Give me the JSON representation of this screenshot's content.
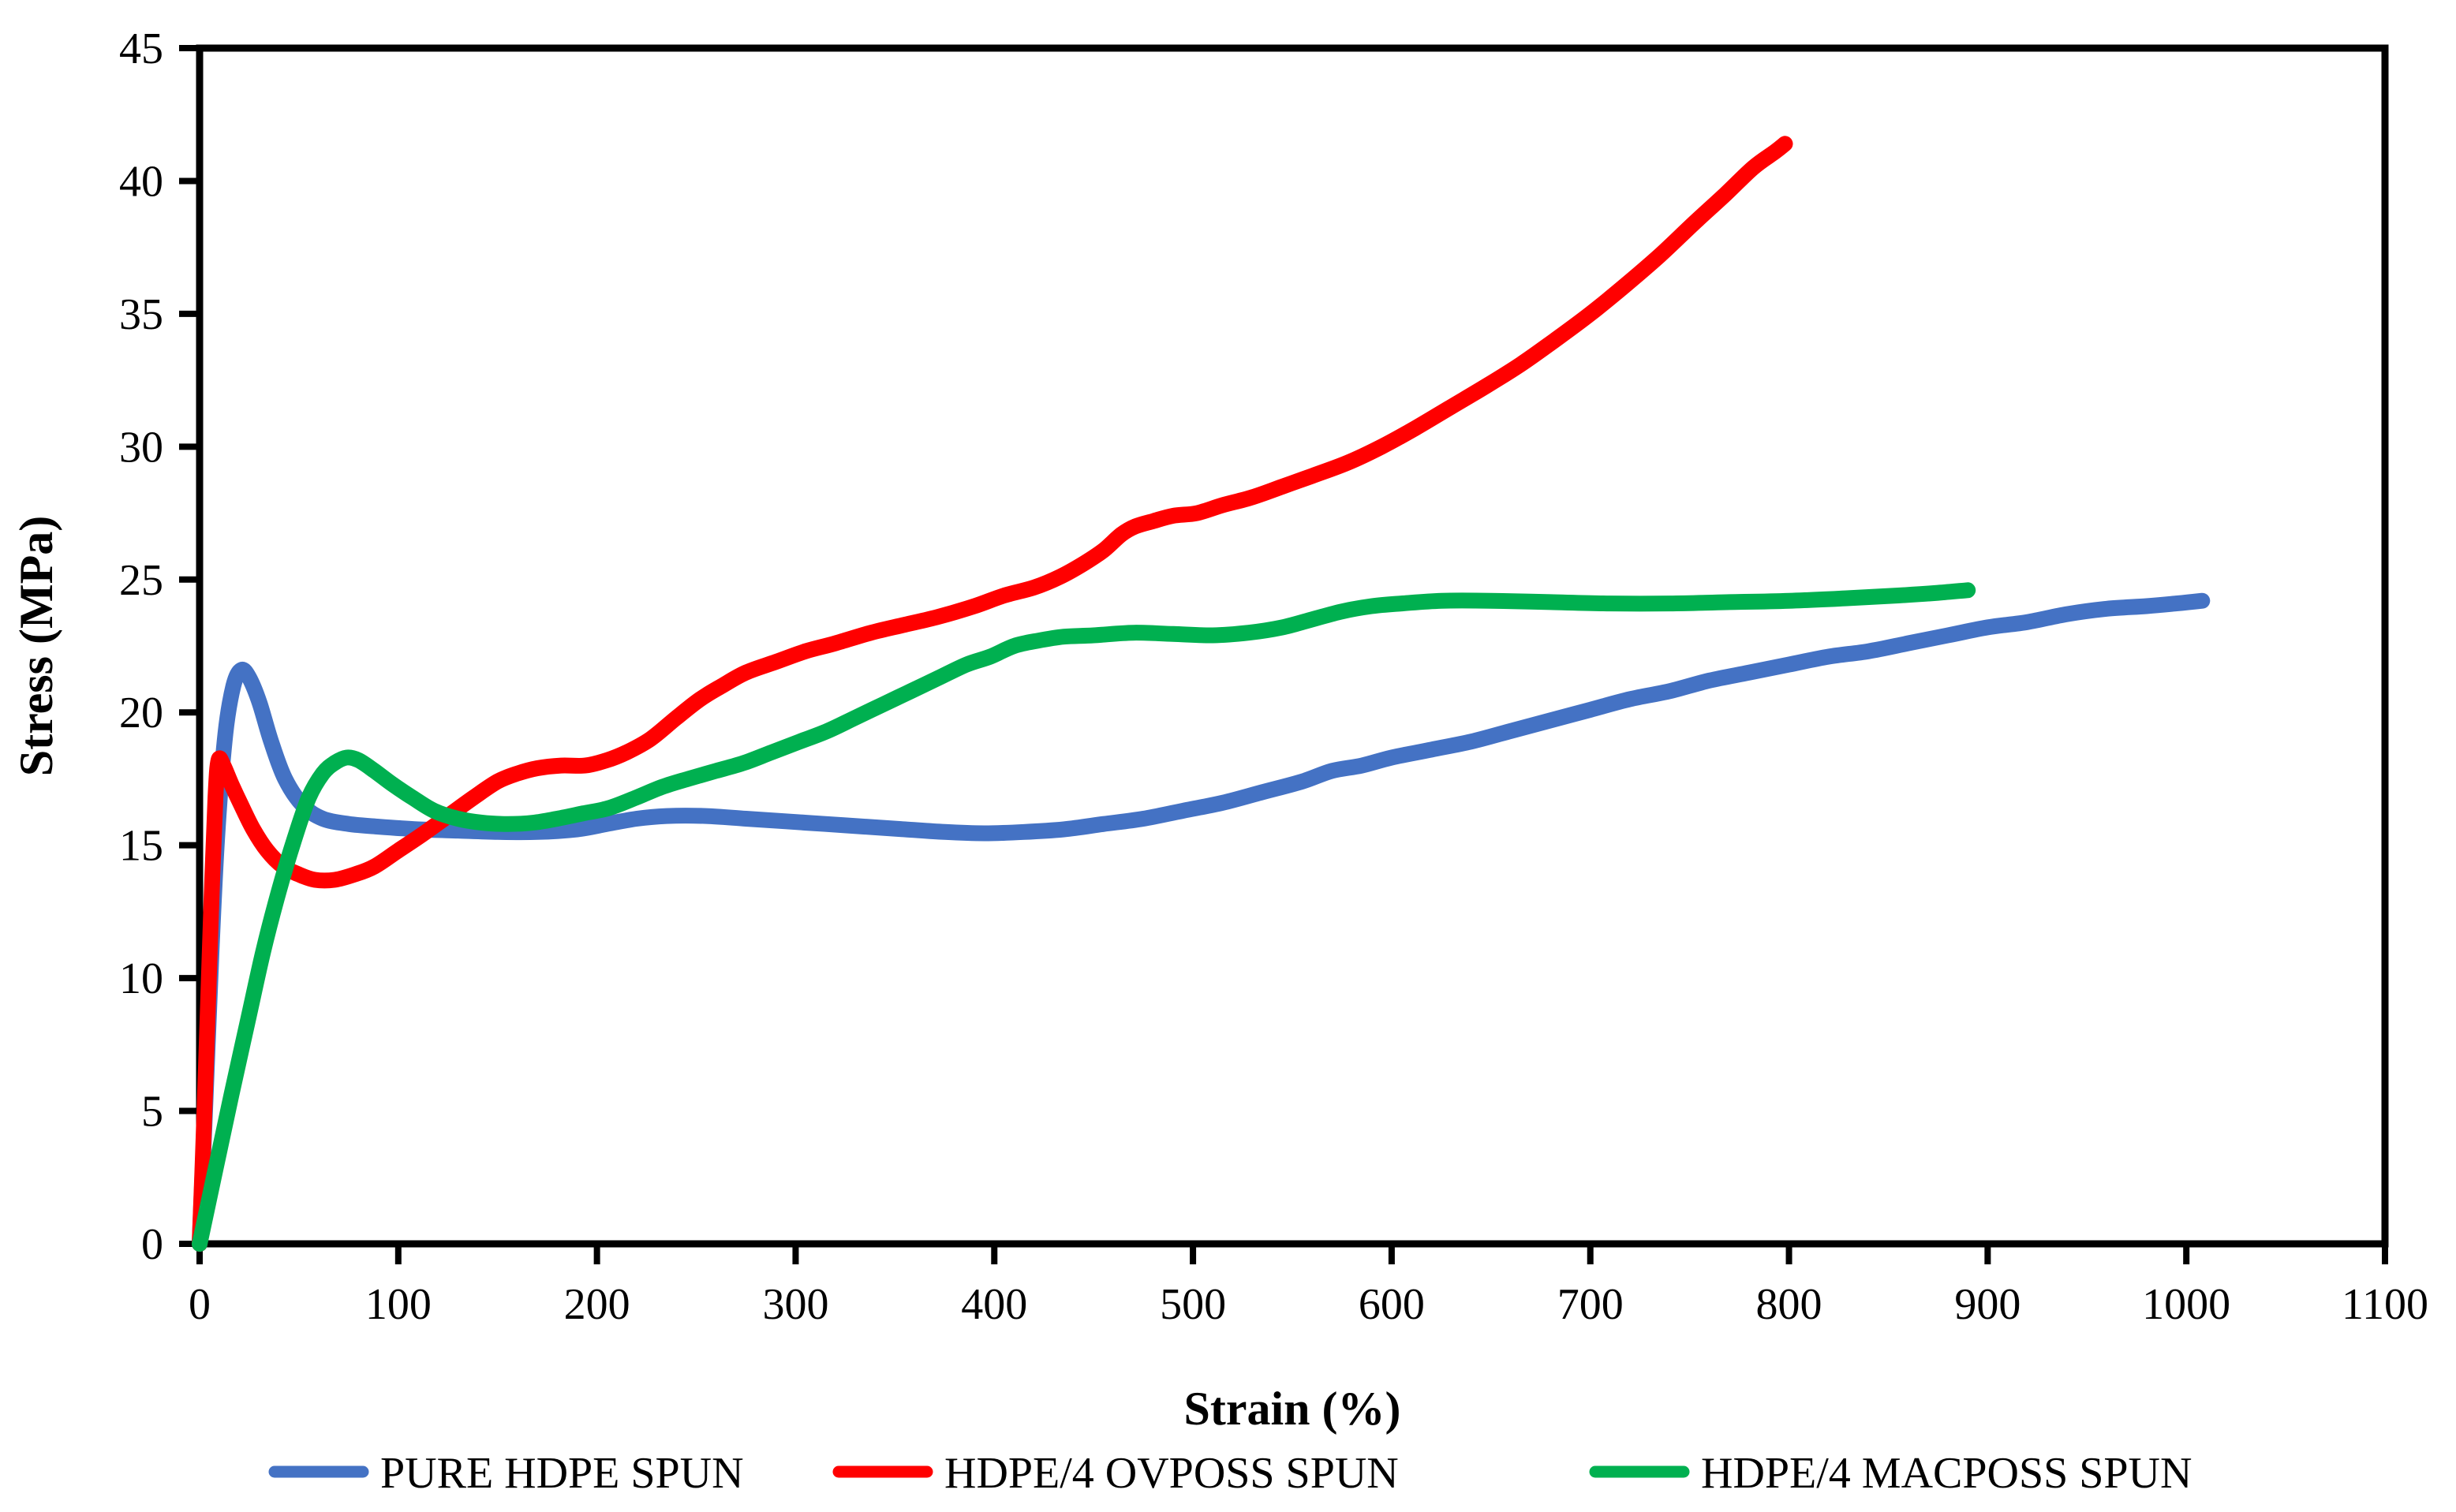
{
  "chart_data": {
    "type": "line",
    "title": "",
    "xlabel": "Strain (%)",
    "ylabel": "Stress (MPa)",
    "xlim": [
      0,
      1100
    ],
    "ylim": [
      0,
      45
    ],
    "x_ticks": [
      0,
      100,
      200,
      300,
      400,
      500,
      600,
      700,
      800,
      900,
      1000,
      1100
    ],
    "y_ticks": [
      0,
      5,
      10,
      15,
      20,
      25,
      30,
      35,
      40,
      45
    ],
    "grid": false,
    "legend_position": "bottom",
    "background_color": "#ffffff",
    "axis_color": "#000000",
    "series": [
      {
        "name": "PURE HDPE SPUN",
        "color": "#4472C4",
        "points": [
          [
            0,
            0
          ],
          [
            3,
            5.5
          ],
          [
            6,
            11
          ],
          [
            9,
            15.5
          ],
          [
            13,
            19.2
          ],
          [
            17,
            21.0
          ],
          [
            21,
            21.6
          ],
          [
            25,
            21.3
          ],
          [
            30,
            20.4
          ],
          [
            36,
            18.9
          ],
          [
            43,
            17.5
          ],
          [
            52,
            16.5
          ],
          [
            62,
            16.0
          ],
          [
            75,
            15.8
          ],
          [
            90,
            15.7
          ],
          [
            110,
            15.6
          ],
          [
            130,
            15.55
          ],
          [
            150,
            15.5
          ],
          [
            170,
            15.5
          ],
          [
            190,
            15.6
          ],
          [
            205,
            15.8
          ],
          [
            220,
            16.0
          ],
          [
            235,
            16.1
          ],
          [
            255,
            16.1
          ],
          [
            275,
            16.0
          ],
          [
            295,
            15.9
          ],
          [
            315,
            15.8
          ],
          [
            335,
            15.7
          ],
          [
            355,
            15.6
          ],
          [
            375,
            15.5
          ],
          [
            395,
            15.45
          ],
          [
            415,
            15.5
          ],
          [
            435,
            15.6
          ],
          [
            455,
            15.8
          ],
          [
            475,
            16.0
          ],
          [
            495,
            16.3
          ],
          [
            515,
            16.6
          ],
          [
            535,
            17.0
          ],
          [
            555,
            17.4
          ],
          [
            570,
            17.8
          ],
          [
            585,
            18.0
          ],
          [
            600,
            18.3
          ],
          [
            620,
            18.6
          ],
          [
            640,
            18.9
          ],
          [
            660,
            19.3
          ],
          [
            680,
            19.7
          ],
          [
            700,
            20.1
          ],
          [
            720,
            20.5
          ],
          [
            740,
            20.8
          ],
          [
            760,
            21.2
          ],
          [
            780,
            21.5
          ],
          [
            800,
            21.8
          ],
          [
            820,
            22.1
          ],
          [
            840,
            22.3
          ],
          [
            860,
            22.6
          ],
          [
            880,
            22.9
          ],
          [
            900,
            23.2
          ],
          [
            920,
            23.4
          ],
          [
            940,
            23.7
          ],
          [
            960,
            23.9
          ],
          [
            980,
            24.0
          ],
          [
            995,
            24.1
          ],
          [
            1008,
            24.2
          ]
        ]
      },
      {
        "name": "HDPE/4 OVPOSS SPUN",
        "color": "#FF0000",
        "points": [
          [
            0,
            0
          ],
          [
            2,
            4
          ],
          [
            4,
            8.5
          ],
          [
            6,
            13
          ],
          [
            8,
            16.8
          ],
          [
            9.5,
            18.2
          ],
          [
            12,
            18.0
          ],
          [
            16,
            17.3
          ],
          [
            21,
            16.5
          ],
          [
            27,
            15.6
          ],
          [
            34,
            14.8
          ],
          [
            42,
            14.2
          ],
          [
            50,
            13.9
          ],
          [
            58,
            13.7
          ],
          [
            68,
            13.7
          ],
          [
            78,
            13.9
          ],
          [
            88,
            14.2
          ],
          [
            100,
            14.8
          ],
          [
            112,
            15.4
          ],
          [
            125,
            16.1
          ],
          [
            138,
            16.8
          ],
          [
            150,
            17.4
          ],
          [
            160,
            17.7
          ],
          [
            170,
            17.9
          ],
          [
            182,
            18.0
          ],
          [
            194,
            18.0
          ],
          [
            205,
            18.2
          ],
          [
            215,
            18.5
          ],
          [
            227,
            19.0
          ],
          [
            240,
            19.8
          ],
          [
            252,
            20.5
          ],
          [
            263,
            21.0
          ],
          [
            275,
            21.5
          ],
          [
            290,
            21.9
          ],
          [
            305,
            22.3
          ],
          [
            320,
            22.6
          ],
          [
            338,
            23.0
          ],
          [
            355,
            23.3
          ],
          [
            372,
            23.6
          ],
          [
            390,
            24.0
          ],
          [
            405,
            24.4
          ],
          [
            420,
            24.7
          ],
          [
            433,
            25.1
          ],
          [
            445,
            25.6
          ],
          [
            455,
            26.1
          ],
          [
            464,
            26.7
          ],
          [
            471,
            27.0
          ],
          [
            480,
            27.2
          ],
          [
            490,
            27.4
          ],
          [
            502,
            27.5
          ],
          [
            515,
            27.8
          ],
          [
            530,
            28.1
          ],
          [
            545,
            28.5
          ],
          [
            560,
            28.9
          ],
          [
            578,
            29.4
          ],
          [
            595,
            30.0
          ],
          [
            612,
            30.7
          ],
          [
            630,
            31.5
          ],
          [
            648,
            32.3
          ],
          [
            665,
            33.1
          ],
          [
            682,
            34.0
          ],
          [
            700,
            35.0
          ],
          [
            718,
            36.1
          ],
          [
            735,
            37.2
          ],
          [
            752,
            38.4
          ],
          [
            768,
            39.5
          ],
          [
            782,
            40.5
          ],
          [
            793,
            41.1
          ],
          [
            798,
            41.4
          ]
        ]
      },
      {
        "name": "HDPE/4 MACPOSS SPUN",
        "color": "#00B050",
        "points": [
          [
            0,
            0
          ],
          [
            8,
            2.8
          ],
          [
            16,
            5.6
          ],
          [
            24,
            8.3
          ],
          [
            32,
            11.0
          ],
          [
            40,
            13.3
          ],
          [
            48,
            15.3
          ],
          [
            55,
            16.8
          ],
          [
            62,
            17.7
          ],
          [
            68,
            18.1
          ],
          [
            74,
            18.3
          ],
          [
            80,
            18.2
          ],
          [
            88,
            17.8
          ],
          [
            97,
            17.3
          ],
          [
            107,
            16.8
          ],
          [
            118,
            16.3
          ],
          [
            130,
            16.0
          ],
          [
            142,
            15.85
          ],
          [
            155,
            15.8
          ],
          [
            168,
            15.85
          ],
          [
            180,
            16.0
          ],
          [
            193,
            16.2
          ],
          [
            206,
            16.4
          ],
          [
            220,
            16.8
          ],
          [
            233,
            17.2
          ],
          [
            246,
            17.5
          ],
          [
            260,
            17.8
          ],
          [
            274,
            18.1
          ],
          [
            288,
            18.5
          ],
          [
            302,
            18.9
          ],
          [
            316,
            19.3
          ],
          [
            330,
            19.8
          ],
          [
            344,
            20.3
          ],
          [
            358,
            20.8
          ],
          [
            372,
            21.3
          ],
          [
            386,
            21.8
          ],
          [
            398,
            22.1
          ],
          [
            410,
            22.5
          ],
          [
            422,
            22.7
          ],
          [
            435,
            22.85
          ],
          [
            450,
            22.9
          ],
          [
            470,
            23.0
          ],
          [
            490,
            22.95
          ],
          [
            510,
            22.9
          ],
          [
            528,
            23.0
          ],
          [
            545,
            23.2
          ],
          [
            560,
            23.5
          ],
          [
            575,
            23.8
          ],
          [
            590,
            24.0
          ],
          [
            605,
            24.1
          ],
          [
            625,
            24.2
          ],
          [
            650,
            24.2
          ],
          [
            680,
            24.15
          ],
          [
            710,
            24.1
          ],
          [
            740,
            24.1
          ],
          [
            770,
            24.15
          ],
          [
            800,
            24.2
          ],
          [
            830,
            24.3
          ],
          [
            855,
            24.4
          ],
          [
            875,
            24.5
          ],
          [
            890,
            24.6
          ]
        ]
      }
    ]
  }
}
